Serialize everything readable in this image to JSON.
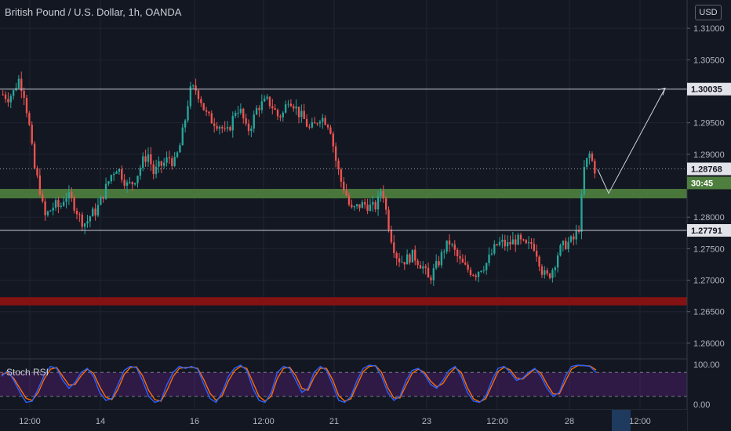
{
  "header": {
    "title": "British Pound / U.S. Dollar, 1h, OANDA",
    "currency_button": "USD"
  },
  "indicator": {
    "label": "Stoch RSI",
    "axis_labels": [
      "100.00",
      "0.00"
    ]
  },
  "price_axis": {
    "ticks": [
      "1.31000",
      "1.30500",
      "1.29500",
      "1.29000",
      "1.28000",
      "1.27500",
      "1.27000",
      "1.26500",
      "1.26000"
    ],
    "tick_values": [
      1.31,
      1.305,
      1.295,
      1.29,
      1.28,
      1.275,
      1.27,
      1.265,
      1.26
    ],
    "ylim": [
      1.2575,
      1.3145
    ]
  },
  "time_axis": {
    "labels": [
      "12:00",
      "14",
      "16",
      "12:00",
      "21",
      "23",
      "12:00",
      "28",
      "12:00"
    ]
  },
  "markers": {
    "resistance_label": "1.30035",
    "resistance_value": 1.30035,
    "current_label": "1.28768",
    "current_value": 1.28768,
    "countdown_label": "30:45",
    "support_label": "1.27791",
    "support_value": 1.27791
  },
  "zones": {
    "green_zone": [
      1.283,
      1.2845
    ],
    "red_zone": [
      1.266,
      1.2673
    ]
  },
  "projection": {
    "points": [
      1.2876,
      1.2838,
      1.3005
    ]
  },
  "chart_data": {
    "type": "candlestick",
    "title": "British Pound / U.S. Dollar, 1h, OANDA",
    "path": [
      1.2995,
      1.299,
      1.2998,
      1.302,
      1.3,
      1.295,
      1.288,
      1.285,
      1.28,
      1.281,
      1.282,
      1.2815,
      1.2835,
      1.283,
      1.2815,
      1.2795,
      1.279,
      1.2805,
      1.281,
      1.283,
      1.285,
      1.287,
      1.288,
      1.2865,
      1.285,
      1.2855,
      1.287,
      1.289,
      1.29,
      1.287,
      1.288,
      1.2885,
      1.2895,
      1.2885,
      1.291,
      1.295,
      1.3,
      1.3005,
      1.299,
      1.2965,
      1.2955,
      1.295,
      1.2945,
      1.293,
      1.295,
      1.2975,
      1.2965,
      1.2935,
      1.295,
      1.2975,
      1.298,
      1.2985,
      1.2975,
      1.296,
      1.2965,
      1.299,
      1.298,
      1.2965,
      1.2955,
      1.294,
      1.2945,
      1.296,
      1.2955,
      1.2945,
      1.2895,
      1.286,
      1.284,
      1.281,
      1.2815,
      1.282,
      1.282,
      1.2815,
      1.2818,
      1.285,
      1.28,
      1.276,
      1.2735,
      1.273,
      1.2735,
      1.274,
      1.273,
      1.272,
      1.27,
      1.2715,
      1.273,
      1.275,
      1.276,
      1.2745,
      1.273,
      1.272,
      1.2715,
      1.271,
      1.272,
      1.2725,
      1.274,
      1.2755,
      1.276,
      1.2755,
      1.276,
      1.2765,
      1.2758,
      1.2752,
      1.276,
      1.274,
      1.271,
      1.2705,
      1.272,
      1.2745,
      1.2755,
      1.276,
      1.2765,
      1.2785,
      1.288,
      1.29,
      1.2876
    ],
    "ylim": [
      1.2575,
      1.3145
    ],
    "resistance": 1.30035,
    "support": 1.27791,
    "current_price": 1.28768
  },
  "stoch_rsi": {
    "ylim": [
      0,
      100
    ],
    "levels": [
      80,
      20
    ],
    "k_path": [
      70,
      85,
      60,
      30,
      5,
      8,
      40,
      75,
      95,
      90,
      60,
      40,
      55,
      80,
      90,
      70,
      30,
      10,
      15,
      50,
      85,
      95,
      92,
      60,
      20,
      5,
      10,
      50,
      80,
      95,
      90,
      95,
      88,
      50,
      15,
      5,
      30,
      70,
      90,
      98,
      85,
      40,
      10,
      5,
      30,
      80,
      95,
      90,
      60,
      30,
      40,
      80,
      95,
      85,
      50,
      10,
      5,
      20,
      60,
      90,
      98,
      96,
      70,
      30,
      10,
      20,
      60,
      85,
      90,
      75,
      50,
      40,
      60,
      85,
      95,
      70,
      30,
      8,
      5,
      20,
      60,
      90,
      95,
      80,
      60,
      65,
      80,
      90,
      70,
      40,
      20,
      30,
      70,
      95,
      98,
      97,
      95,
      80
    ],
    "d_path": [
      75,
      80,
      65,
      40,
      15,
      10,
      30,
      65,
      88,
      92,
      70,
      48,
      50,
      72,
      88,
      78,
      45,
      18,
      12,
      38,
      75,
      92,
      94,
      72,
      35,
      12,
      8,
      35,
      70,
      90,
      92,
      93,
      90,
      62,
      28,
      10,
      22,
      58,
      84,
      95,
      90,
      55,
      20,
      8,
      20,
      65,
      90,
      93,
      72,
      40,
      35,
      68,
      90,
      90,
      62,
      22,
      8,
      14,
      48,
      82,
      95,
      97,
      80,
      42,
      16,
      16,
      48,
      78,
      88,
      80,
      58,
      44,
      52,
      76,
      92,
      80,
      42,
      14,
      6,
      14,
      48,
      82,
      93,
      86,
      66,
      63,
      76,
      88,
      78,
      50,
      26,
      26,
      58,
      88,
      97,
      97,
      96,
      86
    ]
  }
}
